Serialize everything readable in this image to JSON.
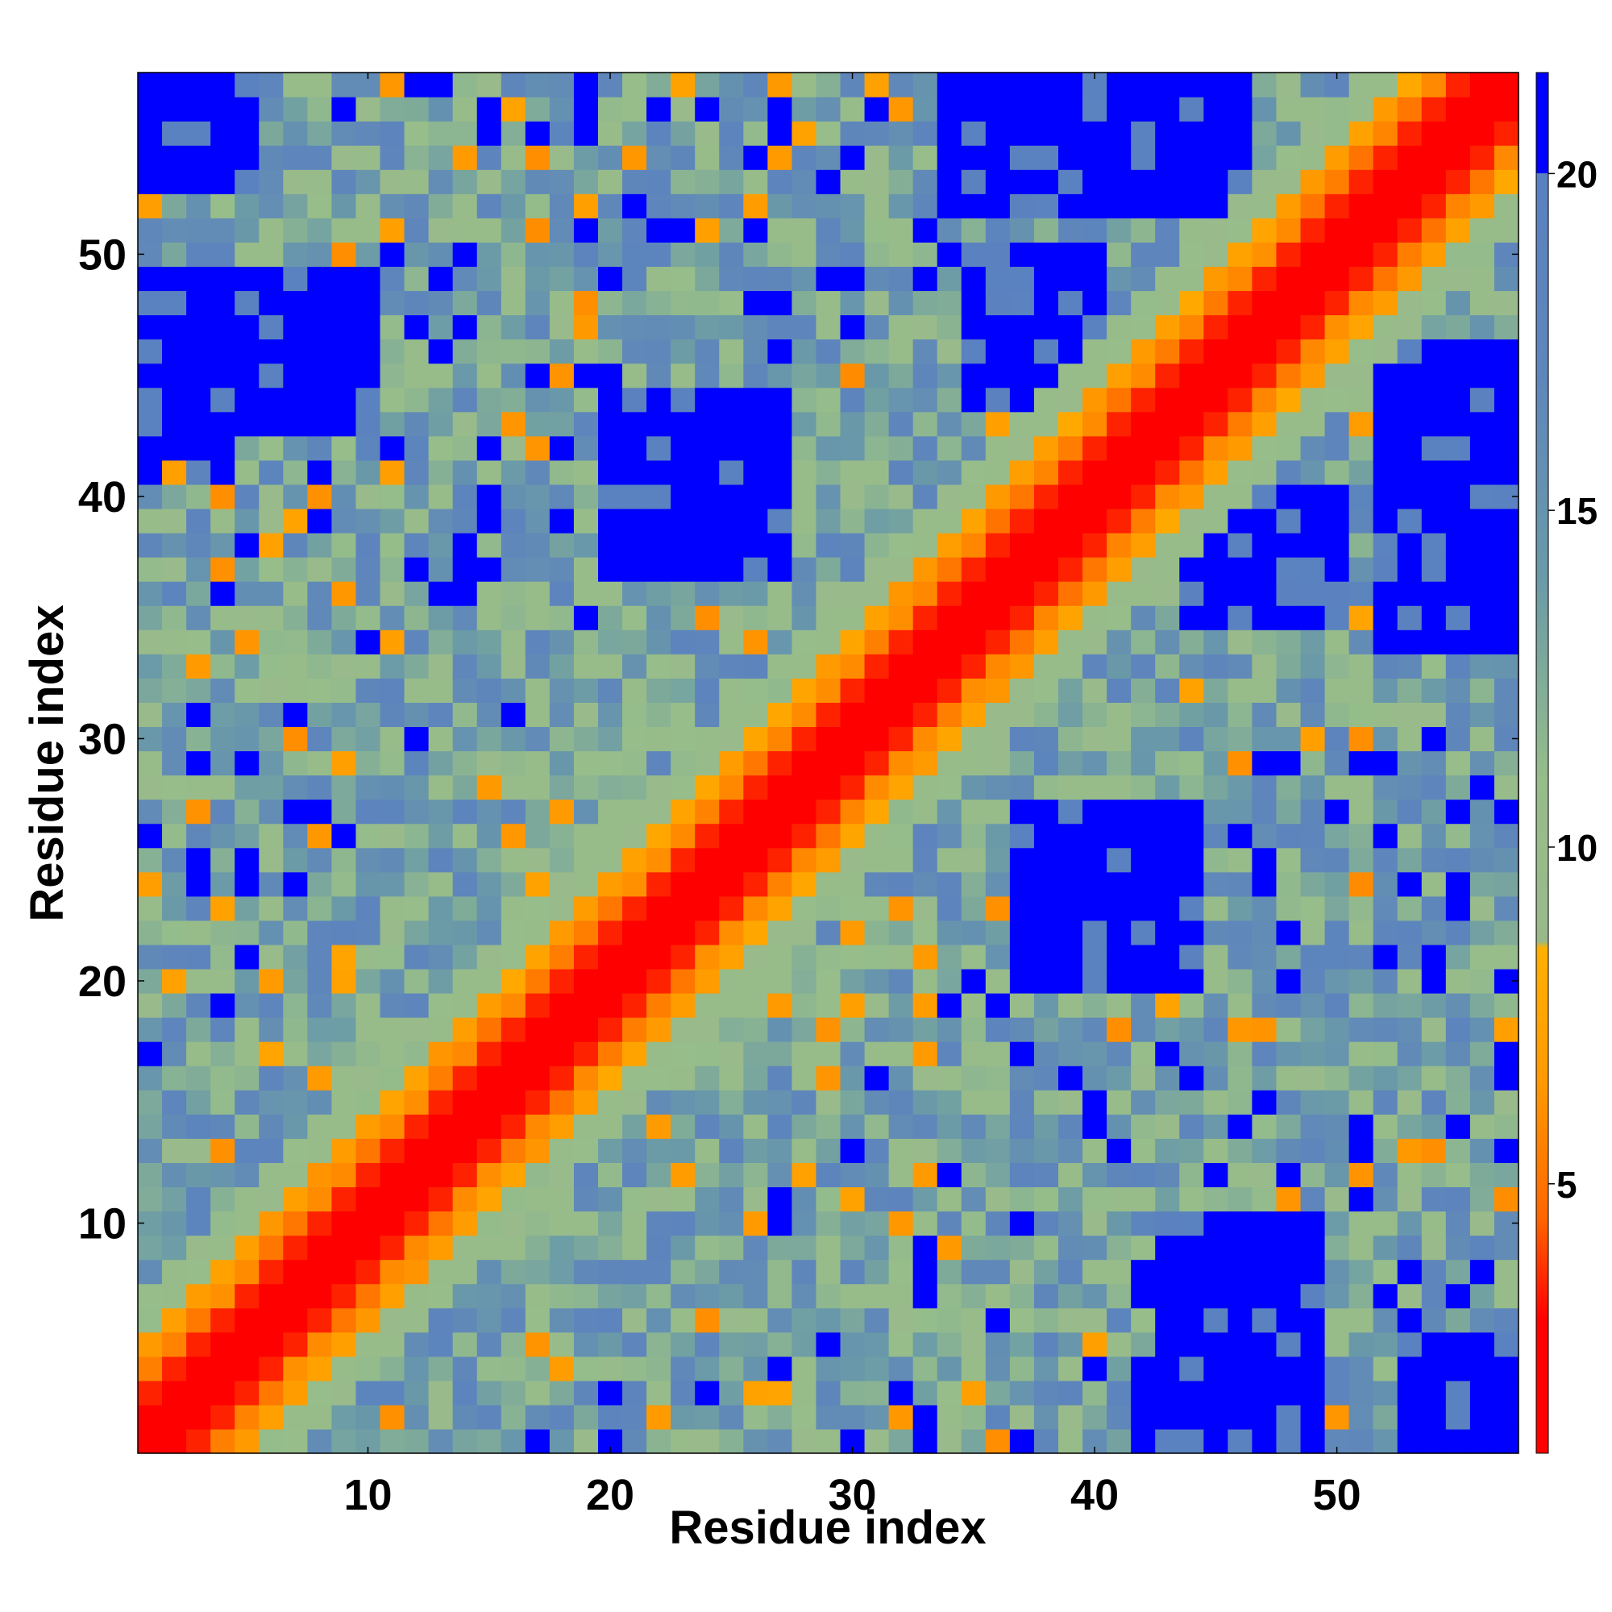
{
  "chart_data": {
    "type": "heatmap",
    "title": "",
    "xlabel": "Residue index",
    "ylabel": "Residue index",
    "n_residues": 57,
    "x_ticks": [
      10,
      20,
      30,
      40,
      50
    ],
    "y_ticks": [
      10,
      20,
      30,
      40,
      50
    ],
    "x_tick_labels": [
      "10",
      "20",
      "30",
      "40",
      "50"
    ],
    "y_tick_labels": [
      "10",
      "20",
      "30",
      "40",
      "50"
    ],
    "xlim": [
      0.5,
      57.5
    ],
    "ylim": [
      0.5,
      57.5
    ],
    "colorbar": {
      "range": [
        1,
        21.5
      ],
      "ticks": [
        5,
        10,
        15,
        20
      ],
      "tick_labels": [
        "5",
        "10",
        "15",
        "20"
      ],
      "stops": [
        {
          "value": 1.0,
          "color": "#ff0000"
        },
        {
          "value": 3.0,
          "color": "#ff0000"
        },
        {
          "value": 4.5,
          "color": "#ff6600"
        },
        {
          "value": 6.5,
          "color": "#ff9900"
        },
        {
          "value": 8.5,
          "color": "#ffb000"
        },
        {
          "value": 8.6,
          "color": "#9ab98a"
        },
        {
          "value": 11.0,
          "color": "#96bd8a"
        },
        {
          "value": 14.0,
          "color": "#6a9aa8"
        },
        {
          "value": 17.0,
          "color": "#5f86bb"
        },
        {
          "value": 20.0,
          "color": "#5a82c0"
        },
        {
          "value": 20.01,
          "color": "#0000ff"
        },
        {
          "value": 21.5,
          "color": "#0000ff"
        }
      ]
    },
    "matrix_description": "Symmetric residue-residue distance map (Angstrom-like units): near-zero on the diagonal (red band), orange neighbours, green/grey-blue mid-range, blue for distances above 20.",
    "far_blocks": [
      {
        "i": [
          1,
          5
        ],
        "j": [
          53,
          57
        ]
      },
      {
        "i": [
          34,
          46
        ],
        "j": [
          52,
          57
        ]
      },
      {
        "i": [
          35,
          40
        ],
        "j": [
          44,
          50
        ]
      },
      {
        "i": [
          1,
          10
        ],
        "j": [
          43,
          49
        ]
      },
      {
        "i": [
          20,
          27
        ],
        "j": [
          37,
          44
        ]
      },
      {
        "i": [
          1,
          4
        ],
        "j": [
          42,
          46
        ]
      }
    ]
  }
}
